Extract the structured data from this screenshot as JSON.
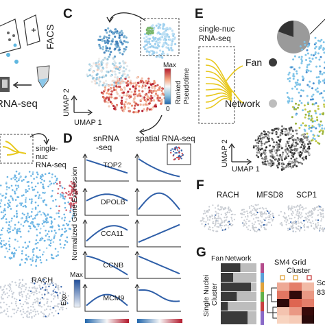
{
  "panels": {
    "c": "C",
    "d": "D",
    "e": "E",
    "f": "F",
    "g": "G"
  },
  "left": {
    "facs": "FACS",
    "rna_seq": "RNA-seq",
    "single_nuc_1": "single-",
    "single_nuc_2": "nuc",
    "single_nuc_3": "RNA-seq",
    "rach": "RACH",
    "exp_max": "Max",
    "exp_label": "Exp."
  },
  "panel_c": {
    "umap1": "UMAP 1",
    "umap2": "UMAP 2",
    "cbar_max": "Max",
    "cbar_min": "0",
    "cbar_label_1": "Ranked",
    "cbar_label_2": "Pseudotime"
  },
  "panel_d": {
    "col1_line1": "snRNA",
    "col1_line2": "-seq",
    "col2": "spatial RNA-seq",
    "ylabel": "Normalized Gene Expression",
    "genes": [
      "TOP2",
      "DPOLB",
      "CCA11",
      "CCNB",
      "MCM9"
    ]
  },
  "panel_e": {
    "single_nuc": "single-nuc",
    "rna_seq": "RNA-seq",
    "fan": "Fan",
    "network": "Network",
    "umap1": "UMAP 1",
    "umap2": "UMAP 2"
  },
  "panel_f": {
    "genes": [
      "RACH",
      "MFSD8",
      "SCP1"
    ]
  },
  "panel_g": {
    "fan": "Fan",
    "network": "Network",
    "ylabel_1": "Single Nuclei",
    "ylabel_2": "Cluster",
    "sm4_title": "SM4 Grid",
    "sm4_cluster": "Cluster",
    "right_sc": "Sc",
    "right_num": "83"
  },
  "colors": {
    "blue": "#2f5fa8",
    "light_blue": "#7fc4e8",
    "red": "#c8323a",
    "yellow": "#e8d21c",
    "gray": "#9a9a9a"
  }
}
